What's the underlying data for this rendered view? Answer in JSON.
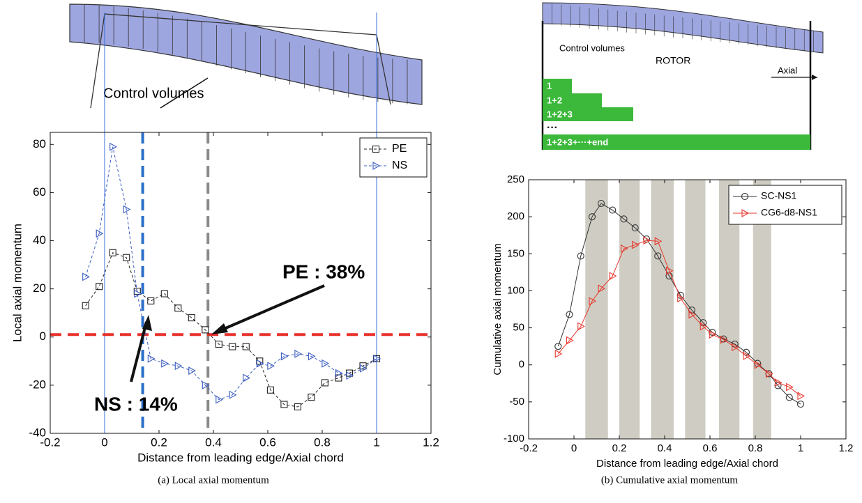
{
  "chart_data": [
    {
      "type": "line",
      "x_label": "Distance from leading edge/Axial chord",
      "y_label": "Local axial momentum",
      "caption": "(a)  Local axial momentum",
      "xlim": [
        -0.2,
        1.2
      ],
      "xticks": [
        -0.2,
        0,
        0.2,
        0.4,
        0.6,
        0.8,
        1,
        1.2
      ],
      "ylim": [
        -40,
        85
      ],
      "yticks": [
        -40,
        -20,
        0,
        20,
        40,
        60,
        80
      ],
      "legend": "upper right",
      "x": [
        -0.07,
        -0.02,
        0.03,
        0.08,
        0.12,
        0.17,
        0.22,
        0.27,
        0.32,
        0.37,
        0.42,
        0.47,
        0.52,
        0.57,
        0.61,
        0.66,
        0.71,
        0.76,
        0.81,
        0.86,
        0.9,
        0.95,
        1.0
      ],
      "series": [
        {
          "name": "PE",
          "color": "#222222",
          "marker": "square",
          "linestyle": "dashed",
          "values": [
            13,
            21,
            35,
            33,
            19,
            15,
            18,
            12,
            8,
            3,
            -3,
            -4,
            -4,
            -10,
            -22,
            -28,
            -29,
            -25,
            -19,
            -17,
            -15,
            -12,
            -9
          ]
        },
        {
          "name": "NS",
          "color": "#3a5cc0",
          "marker": "triangle-right",
          "linestyle": "dashed",
          "values": [
            25,
            43,
            79,
            53,
            18,
            -9,
            -11,
            -12,
            -14,
            -20,
            -26,
            -24,
            -17,
            -11,
            -12,
            -8,
            -7,
            -8,
            -11,
            -15,
            -16,
            -13,
            -9
          ]
        }
      ],
      "hlines": [
        {
          "value": 1,
          "color": "#e8302a",
          "linestyle": "dashed"
        }
      ],
      "vlines": [
        {
          "value": 0,
          "color": "#3a6fd8",
          "linestyle": "solid"
        },
        {
          "value": 1,
          "color": "#3a6fd8",
          "linestyle": "solid"
        },
        {
          "value": 0.14,
          "color": "#2a6fc9",
          "linestyle": "dashed"
        },
        {
          "value": 0.38,
          "color": "#8a8a8a",
          "linestyle": "dashed"
        }
      ],
      "annotations": [
        "PE : 38%",
        "NS : 14%"
      ]
    },
    {
      "type": "line",
      "x_label": "Distance from leading edge/Axial chord",
      "y_label": "Cumulative axial momentum",
      "caption": "(b)  Cumulative axial momentum",
      "xlim": [
        -0.2,
        1.2
      ],
      "xticks": [
        -0.2,
        0,
        0.2,
        0.4,
        0.6,
        0.8,
        1,
        1.2
      ],
      "ylim": [
        -100,
        250
      ],
      "yticks": [
        -100,
        -50,
        0,
        50,
        100,
        150,
        200,
        250
      ],
      "legend": "upper right",
      "bands": [
        [
          0.05,
          0.15
        ],
        [
          0.2,
          0.29
        ],
        [
          0.34,
          0.44
        ],
        [
          0.49,
          0.58
        ],
        [
          0.64,
          0.73
        ],
        [
          0.79,
          0.87
        ]
      ],
      "band_color": "#cfcdc3",
      "x": [
        -0.07,
        -0.02,
        0.03,
        0.08,
        0.12,
        0.17,
        0.22,
        0.27,
        0.32,
        0.37,
        0.42,
        0.47,
        0.52,
        0.57,
        0.61,
        0.66,
        0.71,
        0.76,
        0.81,
        0.86,
        0.9,
        0.95,
        1.0
      ],
      "series": [
        {
          "name": "SC-NS1",
          "color": "#333333",
          "marker": "circle",
          "linestyle": "solid",
          "values": [
            25,
            68,
            147,
            200,
            218,
            209,
            197,
            185,
            170,
            147,
            120,
            94,
            74,
            57,
            44,
            35,
            28,
            17,
            2,
            -12,
            -28,
            -44,
            -53
          ]
        },
        {
          "name": "CG6-d8-NS1",
          "color": "#e8382e",
          "marker": "triangle-right",
          "linestyle": "solid",
          "values": [
            15,
            33,
            52,
            86,
            103,
            120,
            157,
            162,
            168,
            167,
            127,
            90,
            68,
            52,
            41,
            34,
            24,
            12,
            0,
            -12,
            -24,
            -30,
            -42
          ]
        }
      ]
    }
  ],
  "diagrams": {
    "left": {
      "label": "Control volumes"
    },
    "right": {
      "label": "Control volumes",
      "rotor": "ROTOR",
      "axial": "Axial",
      "rows": [
        "1",
        "1+2",
        "1+2+3",
        "···",
        "1+2+3+···+end"
      ]
    }
  }
}
